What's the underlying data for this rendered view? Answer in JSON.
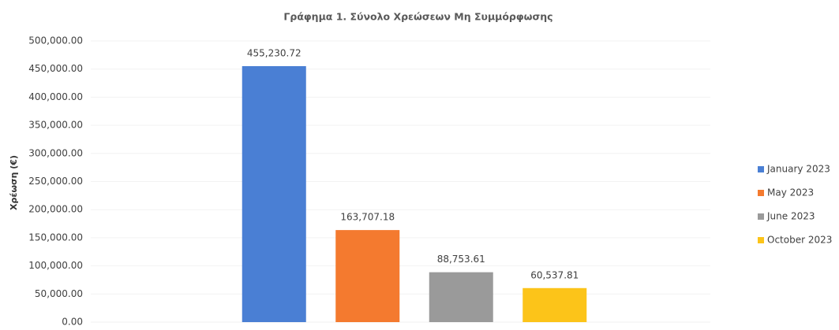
{
  "chart_data": {
    "type": "bar",
    "title": "Γράφημα 1. Σύνολο Χρεώσεων Μη Συμμόρφωσης",
    "y_label": "Χρέωση (€)",
    "categories": [
      null
    ],
    "series": [
      {
        "name": "January 2023",
        "color": "#4a7fd4",
        "values": [
          455230.72
        ],
        "value_labels": [
          "455,230.72"
        ]
      },
      {
        "name": "May 2023",
        "color": "#f47a2f",
        "values": [
          163707.18
        ],
        "value_labels": [
          "163,707.18"
        ]
      },
      {
        "name": "June 2023",
        "color": "#9a9a9a",
        "values": [
          88753.61
        ],
        "value_labels": [
          "88,753.61"
        ]
      },
      {
        "name": "October 2023",
        "color": "#fcc419",
        "values": [
          60537.81
        ],
        "value_labels": [
          "60,537.81"
        ]
      }
    ],
    "ylim": [
      0,
      500000
    ],
    "yticks": [
      {
        "value": 0,
        "label": "0.00"
      },
      {
        "value": 50000,
        "label": "50,000.00"
      },
      {
        "value": 100000,
        "label": "100,000.00"
      },
      {
        "value": 150000,
        "label": "150,000.00"
      },
      {
        "value": 200000,
        "label": "200,000.00"
      },
      {
        "value": 250000,
        "label": "250,000.00"
      },
      {
        "value": 300000,
        "label": "300,000.00"
      },
      {
        "value": 350000,
        "label": "350,000.00"
      },
      {
        "value": 400000,
        "label": "400,000.00"
      },
      {
        "value": 450000,
        "label": "450,000.00"
      },
      {
        "value": 500000,
        "label": "500,000.00"
      }
    ],
    "grid": true,
    "legend": "right"
  }
}
